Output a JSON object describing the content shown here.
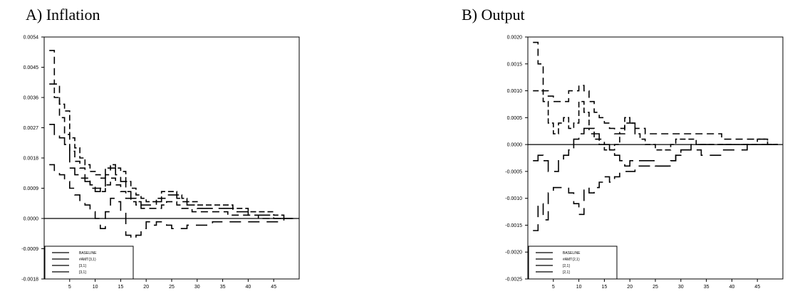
{
  "chart_data": [
    {
      "type": "line",
      "title": "A) Inflation",
      "xlabel": "",
      "ylabel": "",
      "xlim": [
        0,
        50
      ],
      "ylim": [
        -0.0018,
        0.0054
      ],
      "xticks": [
        5,
        10,
        15,
        20,
        25,
        30,
        35,
        40,
        45
      ],
      "yticks": [
        -0.0018,
        -0.0009,
        0.0,
        0.0009,
        0.0018,
        0.0027,
        0.0036,
        0.0045,
        0.0054
      ],
      "ytick_labels": [
        "-0.0018",
        "-0.0009",
        "0.0000",
        "0.0009",
        "0.0018",
        "0.0027",
        "0.0036",
        "0.0045",
        "0.0054"
      ],
      "grid": false,
      "legend_position": "bottom-left",
      "x": [
        1,
        2,
        3,
        4,
        5,
        6,
        7,
        8,
        9,
        10,
        11,
        12,
        13,
        14,
        15,
        16,
        17,
        18,
        19,
        20,
        21,
        22,
        23,
        24,
        25,
        26,
        27,
        28,
        29,
        30,
        31,
        32,
        33,
        34,
        35,
        36,
        37,
        38,
        39,
        40,
        41,
        42,
        43,
        44,
        45,
        46,
        47,
        48
      ],
      "series": [
        {
          "name": "BASELINE",
          "values": [
            0.0028,
            0.0025,
            0.0024,
            0.0022,
            0.0015,
            0.0013,
            0.0012,
            0.0011,
            0.0009,
            0.0008,
            0.0009,
            0.0013,
            0.0015,
            0.0013,
            0.0011,
            0.0008,
            0.0006,
            0.0005,
            0.0004,
            0.0004,
            0.0004,
            0.0005,
            0.0006,
            0.0007,
            0.0007,
            0.0006,
            0.0005,
            0.0004,
            0.0004,
            0.0003,
            0.0003,
            0.0003,
            0.0003,
            0.0003,
            0.0003,
            0.0003,
            0.0002,
            0.0002,
            0.0002,
            0.0001,
            0.0001,
            0.0001,
            0.0001,
            0.0001,
            0.0,
            0.0,
            0.0,
            0.0
          ]
        },
        {
          "name": "#AMT(3,1)",
          "values": [
            0.005,
            0.004,
            0.003,
            0.0025,
            0.002,
            0.0017,
            0.0015,
            0.0012,
            0.001,
            0.0009,
            0.0008,
            0.001,
            0.0012,
            0.001,
            0.0008,
            0.0006,
            0.0005,
            0.0004,
            0.0003,
            0.0003,
            0.0003,
            0.0003,
            0.0004,
            0.0005,
            0.0005,
            0.0004,
            0.0003,
            0.0003,
            0.0002,
            0.0002,
            0.0002,
            0.0002,
            0.0002,
            0.0002,
            0.0002,
            0.0001,
            0.0001,
            0.0001,
            0.0001,
            0.0001,
            0.0001,
            0.0,
            0.0,
            0.0,
            0.0,
            0.0,
            0.0,
            0.0
          ]
        },
        {
          "name": "[3,1]",
          "values": [
            0.0016,
            0.0014,
            0.0013,
            0.0011,
            0.0009,
            0.0007,
            0.0005,
            0.0004,
            0.0002,
            0.0,
            -0.0003,
            0.0002,
            0.0006,
            0.0005,
            0.0002,
            -0.0005,
            -0.0006,
            -0.0005,
            -0.0003,
            -0.0001,
            -0.0002,
            -0.0001,
            -0.0001,
            -0.0002,
            -0.0003,
            -0.0003,
            -0.0003,
            -0.0002,
            -0.0002,
            -0.0002,
            -0.0002,
            -0.0002,
            -0.0001,
            -0.0001,
            -0.0001,
            -0.0001,
            -0.0001,
            -0.0001,
            -0.0001,
            -0.0001,
            -0.0001,
            -0.0001,
            -0.0001,
            -0.0001,
            -0.0001,
            -0.0001,
            0.0,
            0.0
          ]
        },
        {
          "name": "[3,1]",
          "values": [
            0.004,
            0.0036,
            0.0034,
            0.0032,
            0.0024,
            0.0021,
            0.0018,
            0.0016,
            0.0014,
            0.0013,
            0.0012,
            0.0015,
            0.0016,
            0.0015,
            0.0014,
            0.0011,
            0.0009,
            0.0007,
            0.0006,
            0.0005,
            0.0005,
            0.0006,
            0.0008,
            0.0008,
            0.0008,
            0.0007,
            0.0006,
            0.0005,
            0.0005,
            0.0004,
            0.0004,
            0.0004,
            0.0004,
            0.0004,
            0.0004,
            0.0004,
            0.0003,
            0.0003,
            0.0003,
            0.0002,
            0.0002,
            0.0002,
            0.0002,
            0.0002,
            0.0001,
            0.0001,
            0.0,
            0.0
          ]
        }
      ]
    },
    {
      "type": "line",
      "title": "B) Output",
      "xlabel": "",
      "ylabel": "",
      "xlim": [
        0,
        50
      ],
      "ylim": [
        -0.0025,
        0.002
      ],
      "xticks": [
        5,
        10,
        15,
        20,
        25,
        30,
        35,
        40,
        45
      ],
      "yticks": [
        -0.0025,
        -0.002,
        -0.0015,
        -0.001,
        -0.0005,
        0.0,
        0.0005,
        0.001,
        0.0015,
        0.002
      ],
      "ytick_labels": [
        "-0.0025",
        "-0.0020",
        "-0.0015",
        "-0.0010",
        "-0.0005",
        "0.0000",
        "0.0005",
        "0.0010",
        "0.0015",
        "0.0020"
      ],
      "grid": false,
      "legend_position": "bottom-left",
      "x": [
        1,
        2,
        3,
        4,
        5,
        6,
        7,
        8,
        9,
        10,
        11,
        12,
        13,
        14,
        15,
        16,
        17,
        18,
        19,
        20,
        21,
        22,
        23,
        24,
        25,
        26,
        27,
        28,
        29,
        30,
        31,
        32,
        33,
        34,
        35,
        36,
        37,
        38,
        39,
        40,
        41,
        42,
        43,
        44,
        45,
        46,
        47,
        48
      ],
      "series": [
        {
          "name": "BASELINE",
          "values": [
            -0.0003,
            -0.0002,
            -0.0003,
            -0.0005,
            -0.0005,
            -0.0003,
            -0.0002,
            -0.0001,
            0.0001,
            0.0002,
            0.0003,
            0.0002,
            0.0002,
            0.0001,
            0.0,
            -0.0001,
            -0.0002,
            -0.0003,
            -0.0004,
            -0.0003,
            -0.0003,
            -0.0003,
            -0.0003,
            -0.0003,
            -0.0004,
            -0.0004,
            -0.0004,
            -0.0003,
            -0.0002,
            -0.0001,
            -0.0001,
            0.0,
            0.0,
            0.0,
            0.0,
            0.0,
            0.0,
            0.0,
            0.0,
            0.0,
            0.0,
            0.0,
            0.0,
            0.0,
            0.0,
            0.0,
            0.0,
            0.0
          ]
        },
        {
          "name": "#AMT(2,1)",
          "values": [
            0.0019,
            0.0015,
            0.001,
            0.0009,
            0.0008,
            0.0008,
            0.0008,
            0.001,
            0.001,
            0.0011,
            0.001,
            0.0008,
            0.0006,
            0.0005,
            0.0004,
            0.0003,
            0.0002,
            0.0003,
            0.0004,
            0.0004,
            0.0003,
            0.0003,
            0.0002,
            0.0002,
            0.0002,
            0.0002,
            0.0002,
            0.0002,
            0.0002,
            0.0002,
            0.0002,
            0.0002,
            0.0002,
            0.0002,
            0.0002,
            0.0002,
            0.0002,
            0.0001,
            0.0001,
            0.0001,
            0.0001,
            0.0001,
            0.0001,
            0.0001,
            0.0001,
            0.0001,
            0.0,
            0.0
          ]
        },
        {
          "name": "[2,1]",
          "values": [
            -0.0016,
            -0.0011,
            -0.0014,
            -0.0009,
            -0.0008,
            -0.0008,
            -0.0008,
            -0.0009,
            -0.0011,
            -0.0013,
            -0.0008,
            -0.0009,
            -0.0008,
            -0.0007,
            -0.0006,
            -0.0007,
            -0.0006,
            -0.0005,
            -0.0005,
            -0.0005,
            -0.0004,
            -0.0004,
            -0.0004,
            -0.0004,
            -0.0004,
            -0.0004,
            -0.0004,
            -0.0003,
            -0.0002,
            -0.0001,
            -0.0001,
            -0.0001,
            -0.0001,
            -0.0002,
            -0.0002,
            -0.0002,
            -0.0002,
            -0.0001,
            -0.0001,
            -0.0001,
            -0.0001,
            -0.0001,
            0.0,
            0.0,
            0.0,
            0.0,
            0.0,
            0.0
          ]
        },
        {
          "name": "[2,1]",
          "values": [
            0.001,
            0.001,
            0.0008,
            0.0004,
            0.0002,
            0.0004,
            0.0005,
            0.0003,
            0.0004,
            0.0008,
            0.0006,
            0.0003,
            0.0001,
            0.0,
            -0.0001,
            -0.0001,
            0.0,
            0.0002,
            0.0005,
            0.0004,
            0.0002,
            0.0001,
            0.0,
            0.0,
            -0.0001,
            -0.0001,
            -0.0001,
            0.0,
            0.0001,
            0.0001,
            0.0001,
            0.0001,
            0.0,
            0.0,
            0.0,
            0.0,
            0.0,
            0.0,
            0.0,
            0.0,
            0.0,
            0.0,
            0.0,
            0.0,
            0.0001,
            0.0001,
            0.0,
            0.0
          ]
        }
      ]
    }
  ],
  "styles": {
    "series_dash": [
      "22 8",
      "10 6",
      "16 10",
      "8 4"
    ],
    "line_color": "#000000"
  }
}
